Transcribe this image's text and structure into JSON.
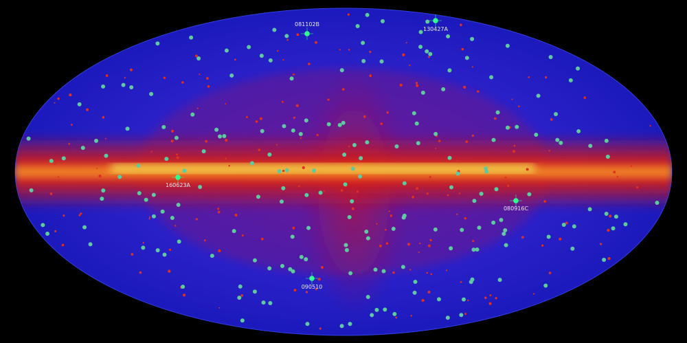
{
  "sky_map": {
    "colors": {
      "background": "#000000",
      "sky": "#1a1fd0",
      "plane": "#e01810",
      "core": "#f0e040",
      "burst": "#5fc9a0",
      "highlight": "#30ff90"
    },
    "highlighted_bursts": [
      {
        "name": "081102B"
      },
      {
        "name": "130427A"
      },
      {
        "name": "160623A"
      },
      {
        "name": "080916C"
      },
      {
        "name": "090510"
      }
    ]
  }
}
